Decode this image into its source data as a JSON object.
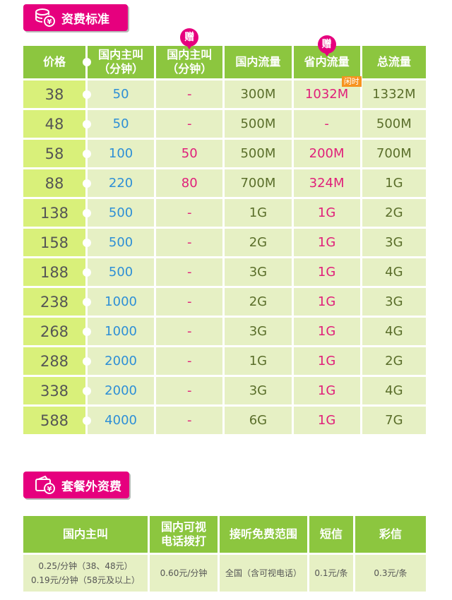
{
  "section1": {
    "title": "资费标准",
    "icon": "coins-yen-icon"
  },
  "section2": {
    "title": "套餐外资费",
    "icon": "wallet-yen-icon"
  },
  "gift_label": "赠",
  "idle_label": "闲时",
  "table1": {
    "headers": {
      "price": "价格",
      "domestic_call": "国内主叫\n（分钟）",
      "gift_call": "国内主叫\n（分钟）",
      "domestic_data": "国内流量",
      "province_data": "省内流量",
      "total_data": "总流量"
    },
    "rows": [
      {
        "price": "38",
        "call": "50",
        "gift_call": "-",
        "domestic": "300M",
        "province": "1032M",
        "total": "1332M"
      },
      {
        "price": "48",
        "call": "50",
        "gift_call": "-",
        "domestic": "500M",
        "province": "-",
        "total": "500M"
      },
      {
        "price": "58",
        "call": "100",
        "gift_call": "50",
        "domestic": "500M",
        "province": "200M",
        "total": "700M"
      },
      {
        "price": "88",
        "call": "220",
        "gift_call": "80",
        "domestic": "700M",
        "province": "324M",
        "total": "1G"
      },
      {
        "price": "138",
        "call": "500",
        "gift_call": "-",
        "domestic": "1G",
        "province": "1G",
        "total": "2G"
      },
      {
        "price": "158",
        "call": "500",
        "gift_call": "-",
        "domestic": "2G",
        "province": "1G",
        "total": "3G"
      },
      {
        "price": "188",
        "call": "500",
        "gift_call": "-",
        "domestic": "3G",
        "province": "1G",
        "total": "4G"
      },
      {
        "price": "238",
        "call": "1000",
        "gift_call": "-",
        "domestic": "2G",
        "province": "1G",
        "total": "3G"
      },
      {
        "price": "268",
        "call": "1000",
        "gift_call": "-",
        "domestic": "3G",
        "province": "1G",
        "total": "4G"
      },
      {
        "price": "288",
        "call": "2000",
        "gift_call": "-",
        "domestic": "1G",
        "province": "1G",
        "total": "2G"
      },
      {
        "price": "338",
        "call": "2000",
        "gift_call": "-",
        "domestic": "3G",
        "province": "1G",
        "total": "4G"
      },
      {
        "price": "588",
        "call": "4000",
        "gift_call": "-",
        "domestic": "6G",
        "province": "1G",
        "total": "7G"
      }
    ]
  },
  "table2": {
    "headers": {
      "domestic_call": "国内主叫",
      "video_call": "国内可视\n电话拨打",
      "free_range": "接听免费范围",
      "sms": "短信",
      "mms": "彩信"
    },
    "row": {
      "domestic_call_line1": "0.25/分钟（38、48元）",
      "domestic_call_line2": "0.19元/分钟（58元及以上）",
      "video_call": "0.60元/分钟",
      "free_range": "全国（含可视电话）",
      "sms": "0.1元/条",
      "mms": "0.3元/条"
    }
  },
  "colors": {
    "magenta": "#e6007e",
    "green": "#8cc63f",
    "cell": "#e6f0c4",
    "price_cell": "#d9f07a",
    "blue": "#2e8fd6",
    "pink": "#e0207a",
    "orange": "#f7931e"
  }
}
